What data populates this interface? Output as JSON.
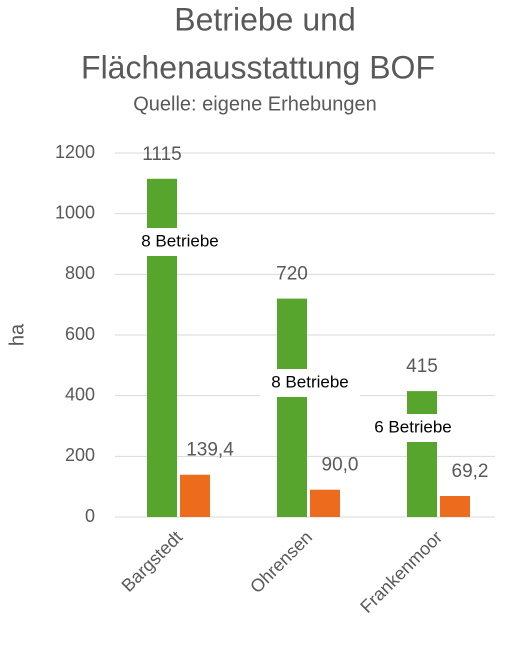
{
  "chart_data": {
    "type": "bar",
    "title": [
      "Betriebe und",
      "Flächenausstattung BOF"
    ],
    "subtitle": "Quelle: eigene Erhebungen",
    "y_label": "ha",
    "categories": [
      "Bargstedt",
      "Ohrensen",
      "Frankenmoor"
    ],
    "series": [
      {
        "color": "#57a52c",
        "values": [
          1115,
          720,
          415
        ]
      },
      {
        "color": "#ec6b1c",
        "values": [
          139.4,
          90.0,
          69.2
        ],
        "value_labels": [
          "139,4",
          "90,0",
          "69,2"
        ]
      }
    ],
    "annotations": [
      "8 Betriebe",
      "8 Betriebe",
      "6 Betriebe"
    ],
    "ylim": [
      0,
      1200
    ],
    "yticks": [
      0,
      200,
      400,
      600,
      800,
      1000,
      1200
    ],
    "grid": true
  }
}
